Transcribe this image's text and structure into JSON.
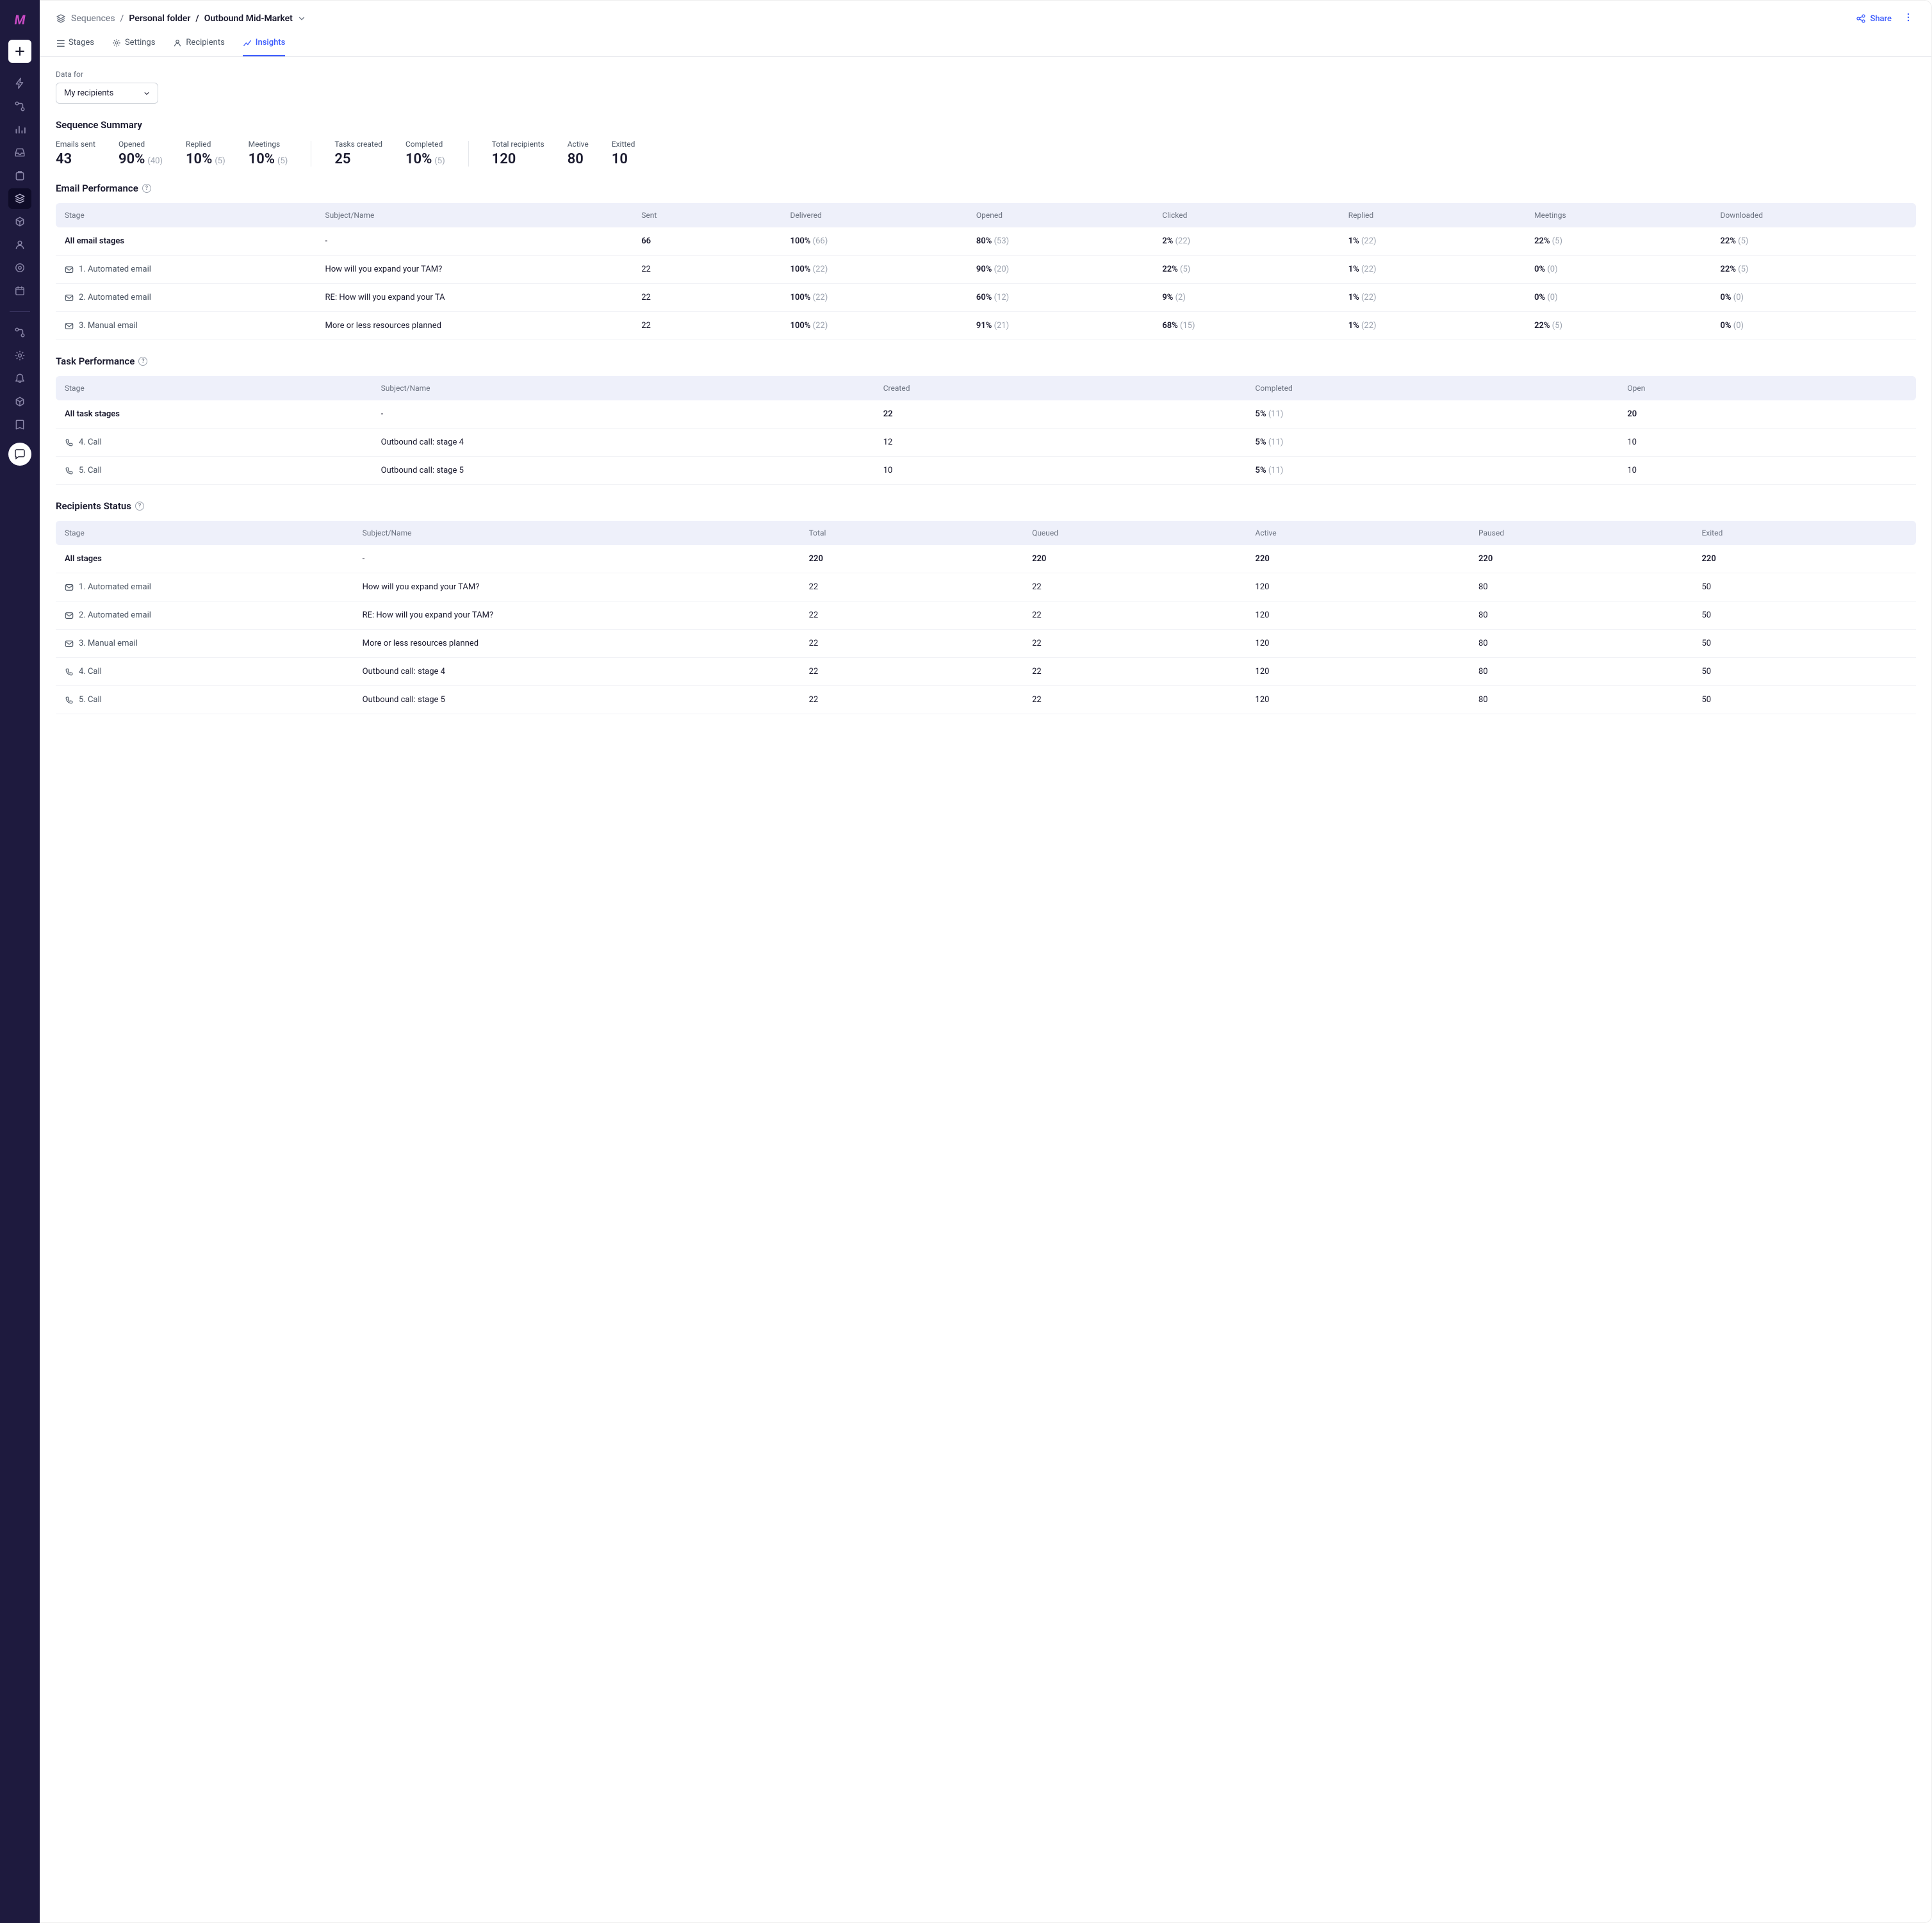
{
  "breadcrumb": {
    "root": "Sequences",
    "folder": "Personal folder",
    "name": "Outbound Mid-Market"
  },
  "topbar": {
    "share": "Share"
  },
  "tabs": {
    "stages": "Stages",
    "settings": "Settings",
    "recipients": "Recipients",
    "insights": "Insights"
  },
  "filter": {
    "label": "Data for",
    "value": "My recipients"
  },
  "summary": {
    "title": "Sequence Summary",
    "emails_sent": {
      "label": "Emails sent",
      "value": "43"
    },
    "opened": {
      "label": "Opened",
      "value": "90%",
      "sub": "(40)"
    },
    "replied": {
      "label": "Replied",
      "value": "10%",
      "sub": "(5)"
    },
    "meetings": {
      "label": "Meetings",
      "value": "10%",
      "sub": "(5)"
    },
    "tasks_created": {
      "label": "Tasks created",
      "value": "25"
    },
    "completed": {
      "label": "Completed",
      "value": "10%",
      "sub": "(5)"
    },
    "total_recipients": {
      "label": "Total recipients",
      "value": "120"
    },
    "active": {
      "label": "Active",
      "value": "80"
    },
    "exitted": {
      "label": "Exitted",
      "value": "10"
    }
  },
  "email_perf": {
    "title": "Email Performance",
    "headers": {
      "stage": "Stage",
      "subject": "Subject/Name",
      "sent": "Sent",
      "delivered": "Delivered",
      "opened": "Opened",
      "clicked": "Clicked",
      "replied": "Replied",
      "meetings": "Meetings",
      "downloaded": "Downloaded"
    },
    "all": {
      "stage": "All email stages",
      "subject": "-",
      "sent": "66",
      "delivered_p": "100%",
      "delivered_s": "(66)",
      "opened_p": "80%",
      "opened_s": "(53)",
      "clicked_p": "2%",
      "clicked_s": "(22)",
      "replied_p": "1%",
      "replied_s": "(22)",
      "meetings_p": "22%",
      "meetings_s": "(5)",
      "downloaded_p": "22%",
      "downloaded_s": "(5)"
    },
    "rows": [
      {
        "icon": "mail",
        "stage": "1. Automated email",
        "subject": "How will you expand your TAM?",
        "sent": "22",
        "delivered_p": "100%",
        "delivered_s": "(22)",
        "opened_p": "90%",
        "opened_s": "(20)",
        "clicked_p": "22%",
        "clicked_s": "(5)",
        "replied_p": "1%",
        "replied_s": "(22)",
        "meetings_p": "0%",
        "meetings_s": "(0)",
        "downloaded_p": "22%",
        "downloaded_s": "(5)"
      },
      {
        "icon": "mail",
        "stage": "2. Automated email",
        "subject": "RE: How will you expand your TA",
        "sent": "22",
        "delivered_p": "100%",
        "delivered_s": "(22)",
        "opened_p": "60%",
        "opened_s": "(12)",
        "clicked_p": "9%",
        "clicked_s": "(2)",
        "replied_p": "1%",
        "replied_s": "(22)",
        "meetings_p": "0%",
        "meetings_s": "(0)",
        "downloaded_p": "0%",
        "downloaded_s": "(0)"
      },
      {
        "icon": "mail",
        "stage": "3. Manual email",
        "subject": "More or less resources planned",
        "sent": "22",
        "delivered_p": "100%",
        "delivered_s": "(22)",
        "opened_p": "91%",
        "opened_s": "(21)",
        "clicked_p": "68%",
        "clicked_s": "(15)",
        "replied_p": "1%",
        "replied_s": "(22)",
        "meetings_p": "22%",
        "meetings_s": "(5)",
        "downloaded_p": "0%",
        "downloaded_s": "(0)"
      }
    ]
  },
  "task_perf": {
    "title": "Task Performance",
    "headers": {
      "stage": "Stage",
      "subject": "Subject/Name",
      "created": "Created",
      "completed": "Completed",
      "open": "Open"
    },
    "all": {
      "stage": "All task stages",
      "subject": "-",
      "created": "22",
      "completed_p": "5%",
      "completed_s": "(11)",
      "open": "20"
    },
    "rows": [
      {
        "icon": "phone",
        "stage": "4. Call",
        "subject": "Outbound call: stage 4",
        "created": "12",
        "completed_p": "5%",
        "completed_s": "(11)",
        "open": "10"
      },
      {
        "icon": "phone",
        "stage": "5. Call",
        "subject": "Outbound call: stage 5",
        "created": "10",
        "completed_p": "5%",
        "completed_s": "(11)",
        "open": "10"
      }
    ]
  },
  "recipients": {
    "title": "Recipients Status",
    "headers": {
      "stage": "Stage",
      "subject": "Subject/Name",
      "total": "Total",
      "queued": "Queued",
      "active": "Active",
      "paused": "Paused",
      "exited": "Exited"
    },
    "all": {
      "stage": "All stages",
      "subject": "-",
      "total": "220",
      "queued": "220",
      "active": "220",
      "paused": "220",
      "exited": "220"
    },
    "rows": [
      {
        "icon": "mail",
        "stage": "1. Automated email",
        "subject": "How will you expand your TAM?",
        "total": "22",
        "queued": "22",
        "active": "120",
        "paused": "80",
        "exited": "50"
      },
      {
        "icon": "mail",
        "stage": "2. Automated email",
        "subject": "RE: How will you expand your TAM?",
        "total": "22",
        "queued": "22",
        "active": "120",
        "paused": "80",
        "exited": "50"
      },
      {
        "icon": "mail",
        "stage": "3. Manual email",
        "subject": "More or less resources planned",
        "total": "22",
        "queued": "22",
        "active": "120",
        "paused": "80",
        "exited": "50"
      },
      {
        "icon": "phone",
        "stage": "4. Call",
        "subject": "Outbound call: stage 4",
        "total": "22",
        "queued": "22",
        "active": "120",
        "paused": "80",
        "exited": "50"
      },
      {
        "icon": "phone",
        "stage": "5. Call",
        "subject": "Outbound call: stage 5",
        "total": "22",
        "queued": "22",
        "active": "120",
        "paused": "80",
        "exited": "50"
      }
    ]
  },
  "colors": {
    "sidebar_bg": "#1e1a3e",
    "accent": "#3b5bfd",
    "thead_bg": "#eef0fa",
    "text": "#1a1a2e",
    "muted": "#6b7280",
    "sub": "#9ca3af",
    "border": "#e5e7eb"
  }
}
